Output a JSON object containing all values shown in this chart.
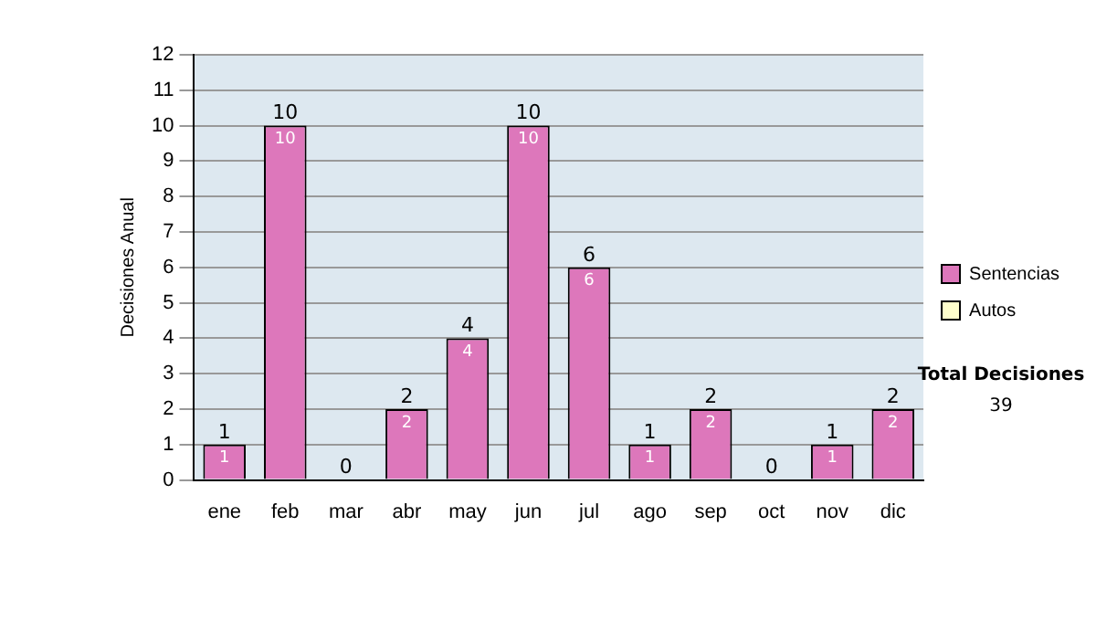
{
  "chart_data": {
    "type": "bar",
    "ylabel": "Decisiones Anual",
    "categories": [
      "ene",
      "feb",
      "mar",
      "abr",
      "may",
      "jun",
      "jul",
      "ago",
      "sep",
      "oct",
      "nov",
      "dic"
    ],
    "series": [
      {
        "name": "Sentencias",
        "color": "#dd77bb",
        "values": [
          1,
          10,
          0,
          2,
          4,
          10,
          6,
          1,
          2,
          0,
          1,
          2
        ],
        "value_labels": [
          "1",
          "10",
          null,
          "2",
          "4",
          "10",
          "6",
          "1",
          "2",
          null,
          "1",
          "2"
        ]
      },
      {
        "name": "Autos",
        "color": "#ffffcc",
        "values": [
          0,
          0,
          0,
          0,
          0,
          0,
          0,
          0,
          0,
          0,
          0,
          0
        ]
      }
    ],
    "stacked": true,
    "totals": [
      "1",
      "10",
      "0",
      "2",
      "4",
      "10",
      "6",
      "1",
      "2",
      "0",
      "1",
      "2"
    ],
    "ylim": [
      0,
      12
    ],
    "yticks": [
      0,
      1,
      2,
      3,
      4,
      5,
      6,
      7,
      8,
      9,
      10,
      11,
      12
    ],
    "grid": "y",
    "legend": "right",
    "annotations": [
      "Total Decisiones",
      "39"
    ]
  }
}
